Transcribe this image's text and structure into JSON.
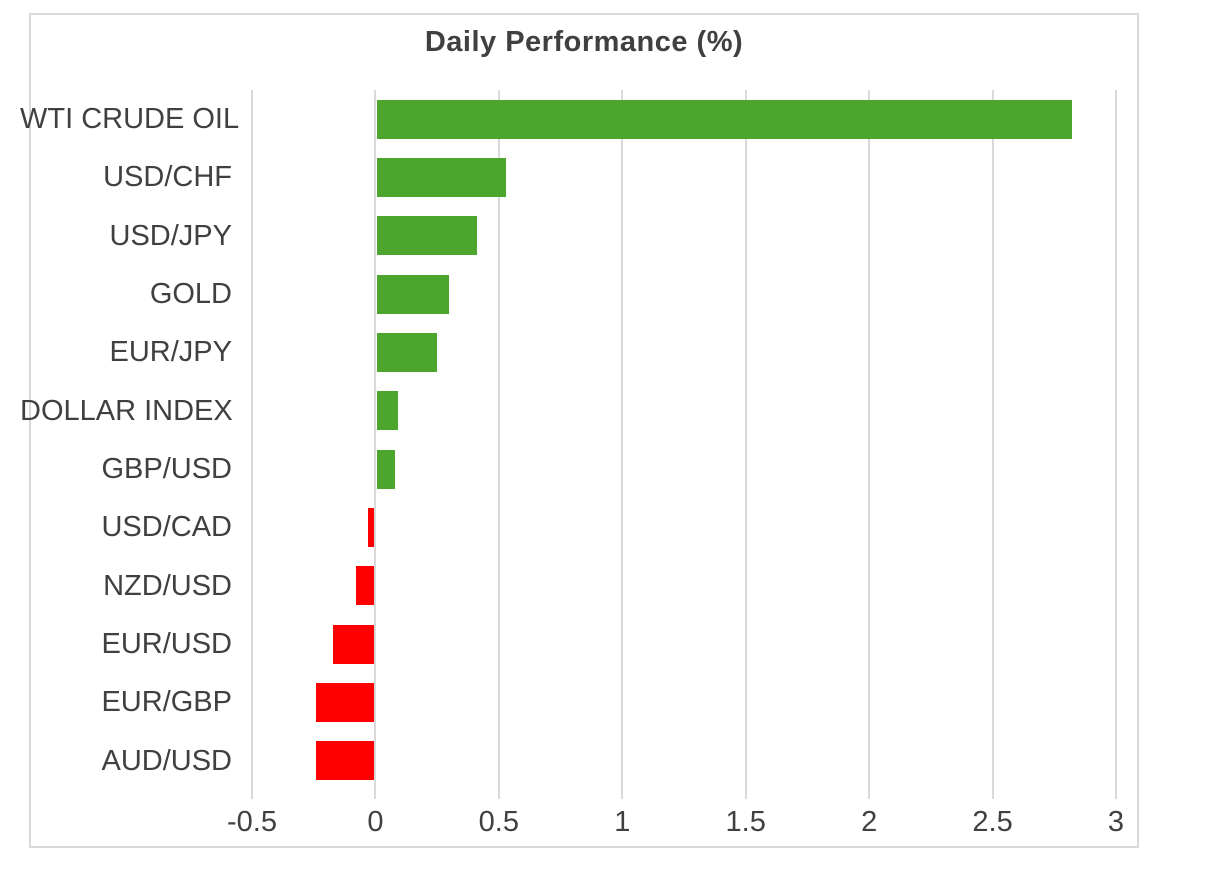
{
  "chart_data": {
    "type": "bar",
    "orientation": "horizontal",
    "title": "Daily Performance (%)",
    "categories": [
      "WTI CRUDE OIL",
      "USD/CHF",
      "USD/JPY",
      "GOLD",
      "EUR/JPY",
      "DOLLAR INDEX",
      "GBP/USD",
      "USD/CAD",
      "NZD/USD",
      "EUR/USD",
      "EUR/GBP",
      "AUD/USD"
    ],
    "values": [
      2.82,
      0.53,
      0.41,
      0.3,
      0.25,
      0.09,
      0.08,
      -0.03,
      -0.08,
      -0.17,
      -0.24,
      -0.24
    ],
    "x_ticks": [
      -0.5,
      0,
      0.5,
      1,
      1.5,
      2,
      2.5,
      3
    ],
    "x_tick_labels": [
      "-0.5",
      "0",
      "0.5",
      "1",
      "1.5",
      "2",
      "2.5",
      "3"
    ],
    "xlim": [
      -0.5,
      3
    ],
    "grid": true,
    "legend": false,
    "xlabel": "",
    "ylabel": "",
    "colors": {
      "positive": "#4ca62e",
      "negative": "#ff0000",
      "gridline": "#d9d9d9",
      "border": "#d9d9d9",
      "text": "#404040",
      "title_text": "#404040"
    }
  }
}
